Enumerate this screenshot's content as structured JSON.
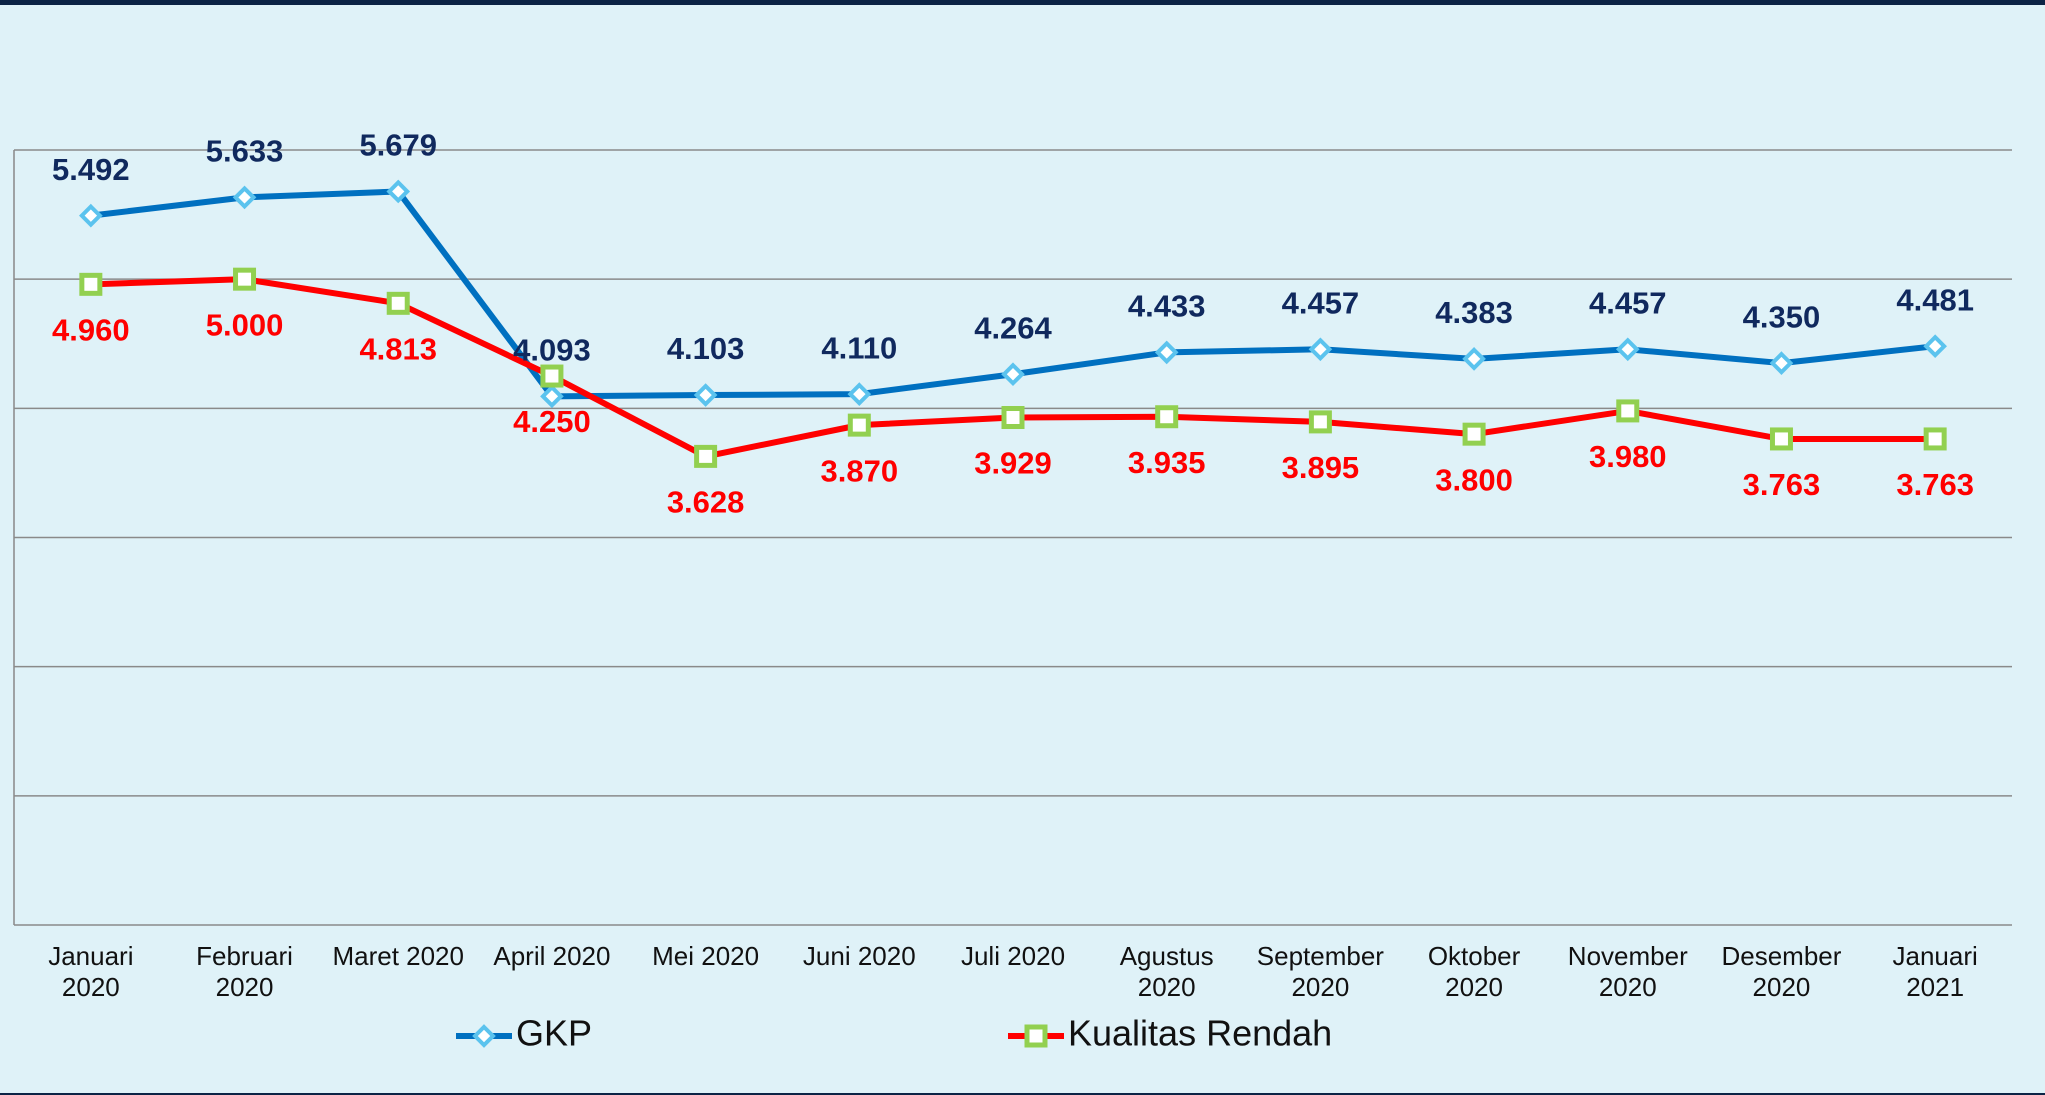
{
  "chart_data": {
    "type": "line",
    "categories": [
      "Januari 2020",
      "Februari 2020",
      "Maret 2020",
      "April 2020",
      "Mei 2020",
      "Juni 2020",
      "Juli 2020",
      "Agustus 2020",
      "September 2020",
      "Oktober 2020",
      "November 2020",
      "Desember 2020",
      "Januari 2021"
    ],
    "series": [
      {
        "name": "GKP",
        "color": "#0070c0",
        "marker": "diamond",
        "marker_color": "#5bc3ee",
        "label_color": "#10295e",
        "values": [
          5492,
          5633,
          5679,
          4093,
          4103,
          4110,
          4264,
          4433,
          4457,
          4383,
          4457,
          4350,
          4481
        ],
        "value_labels": [
          "5.492",
          "5.633",
          "5.679",
          "4.093",
          "4.103",
          "4.110",
          "4.264",
          "4.433",
          "4.457",
          "4.383",
          "4.457",
          "4.350",
          "4.481"
        ]
      },
      {
        "name": "Kualitas Rendah",
        "color": "#ff0000",
        "marker": "square",
        "marker_color": "#92d050",
        "label_color": "#ff0000",
        "values": [
          4960,
          5000,
          4813,
          4250,
          3628,
          3870,
          3929,
          3935,
          3895,
          3800,
          3980,
          3763,
          3763
        ],
        "value_labels": [
          "4.960",
          "5.000",
          "4.813",
          "4.250",
          "3.628",
          "3.870",
          "3.929",
          "3.935",
          "3.895",
          "3.800",
          "3.980",
          "3.763",
          "3.763"
        ]
      }
    ],
    "ylim": [
      0,
      6000
    ],
    "yticks": [
      0,
      1000,
      2000,
      3000,
      4000,
      5000,
      6000
    ],
    "grid": true,
    "legend": "bottom"
  }
}
